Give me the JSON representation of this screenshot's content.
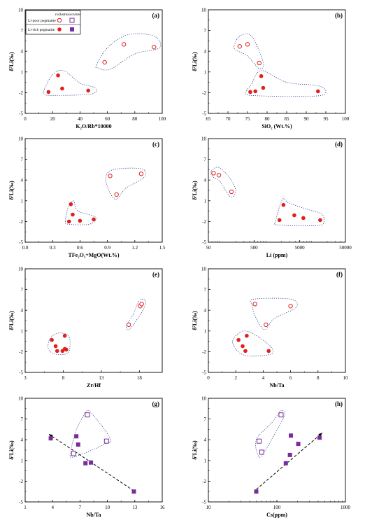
{
  "legend": {
    "col_rocks": "rocks",
    "col_muscovites": "muscovites",
    "row_poor": "Li-poor pegmatite",
    "row_rich": "Li-rich pegmatite"
  },
  "colors": {
    "rock_red": "#e0201b",
    "muscovite_purple": "#7b2c9c",
    "envelope": "#2b3a8c"
  },
  "chart_data": [
    {
      "id": "a",
      "panel_label": "(a)",
      "type": "scatter",
      "xlabel": "K₂O/Rb*10000",
      "ylabel": "δ⁷Li(‰)",
      "xscale": "linear",
      "xlim": [
        0,
        100
      ],
      "xticks": [
        0,
        20,
        40,
        60,
        80,
        100
      ],
      "xtick_labels": [
        "0",
        "20",
        "40",
        "60",
        "80",
        "100"
      ],
      "ylim": [
        -5,
        10
      ],
      "yticks": [
        -5,
        -2,
        1,
        4,
        7,
        10
      ],
      "series": [
        {
          "name": "Li-poor pegmatite",
          "marker": "open-circle",
          "x": [
            58,
            72,
            94
          ],
          "y": [
            2.4,
            5.0,
            4.6
          ]
        },
        {
          "name": "Li-rich pegmatite",
          "marker": "filled-circle",
          "x": [
            17,
            24,
            27,
            46
          ],
          "y": [
            -1.9,
            0.5,
            -1.4,
            -1.7
          ]
        }
      ],
      "envelopes": [
        [
          [
            52,
            2.0
          ],
          [
            60,
            4.5
          ],
          [
            75,
            6.4
          ],
          [
            94,
            6.2
          ],
          [
            98,
            4.5
          ],
          [
            80,
            3.6
          ],
          [
            62,
            1.4
          ],
          [
            53,
            1.6
          ]
        ],
        [
          [
            14,
            -1.5
          ],
          [
            20,
            0.6
          ],
          [
            28,
            1.2
          ],
          [
            40,
            -0.6
          ],
          [
            51,
            -1.3
          ],
          [
            48,
            -2.2
          ],
          [
            20,
            -2.4
          ],
          [
            14,
            -2.2
          ]
        ]
      ]
    },
    {
      "id": "b",
      "panel_label": "(b)",
      "type": "scatter",
      "xlabel": "SiO₂ (Wt.%)",
      "ylabel": "δ⁷Li(‰)",
      "xscale": "linear",
      "xlim": [
        65,
        100
      ],
      "xticks": [
        65,
        70,
        75,
        80,
        85,
        90,
        95,
        100
      ],
      "xtick_labels": [
        "65",
        "70",
        "75",
        "80",
        "85",
        "90",
        "95",
        "100"
      ],
      "ylim": [
        -5,
        10
      ],
      "yticks": [
        -5,
        -2,
        1,
        4,
        7,
        10
      ],
      "series": [
        {
          "name": "Li-poor pegmatite",
          "marker": "open-circle",
          "x": [
            73,
            75,
            78
          ],
          "y": [
            4.7,
            5.0,
            2.3
          ]
        },
        {
          "name": "Li-rich pegmatite",
          "marker": "filled-circle",
          "x": [
            75.7,
            77,
            78.5,
            79,
            93
          ],
          "y": [
            -1.9,
            -1.8,
            0.4,
            -1.3,
            -1.8
          ]
        }
      ],
      "envelopes": [
        [
          [
            71.6,
            4.8
          ],
          [
            73,
            6.2
          ],
          [
            76,
            6.2
          ],
          [
            79,
            2.4
          ],
          [
            78,
            1.5
          ],
          [
            75,
            3.3
          ],
          [
            72,
            4.2
          ]
        ],
        [
          [
            74.8,
            -1.7
          ],
          [
            76,
            -0.8
          ],
          [
            78.5,
            1.2
          ],
          [
            85,
            -0.5
          ],
          [
            93,
            -1.0
          ],
          [
            95,
            -1.9
          ],
          [
            92,
            -2.5
          ],
          [
            76,
            -2.4
          ]
        ]
      ]
    },
    {
      "id": "c",
      "panel_label": "(c)",
      "type": "scatter",
      "xlabel": "TFe₂O₃+MgO(Wt.%)",
      "ylabel": "δ⁷Li(‰)",
      "xscale": "linear",
      "xlim": [
        0,
        1.5
      ],
      "xticks": [
        0,
        0.3,
        0.6,
        0.9,
        1.2,
        1.5
      ],
      "xtick_labels": [
        "0.0",
        "0.3",
        "0.6",
        "0.9",
        "1.2",
        "1.5"
      ],
      "ylim": [
        -5,
        10
      ],
      "yticks": [
        -5,
        -2,
        1,
        4,
        7,
        10
      ],
      "series": [
        {
          "name": "Li-poor pegmatite",
          "marker": "open-circle",
          "x": [
            0.93,
            1.0,
            1.27
          ],
          "y": [
            4.6,
            1.9,
            4.9
          ]
        },
        {
          "name": "Li-rich pegmatite",
          "marker": "filled-circle",
          "x": [
            0.48,
            0.5,
            0.52,
            0.6,
            0.75
          ],
          "y": [
            -2.0,
            0.5,
            -1.0,
            -1.9,
            -1.7
          ]
        }
      ],
      "envelopes": [
        [
          [
            0.89,
            4.8
          ],
          [
            1.0,
            5.6
          ],
          [
            1.28,
            5.6
          ],
          [
            1.3,
            4.4
          ],
          [
            1.1,
            2.8
          ],
          [
            0.99,
            1.2
          ],
          [
            0.9,
            3.0
          ]
        ],
        [
          [
            0.44,
            -2.0
          ],
          [
            0.47,
            0.0
          ],
          [
            0.53,
            1.0
          ],
          [
            0.57,
            -0.4
          ],
          [
            0.72,
            -1.1
          ],
          [
            0.78,
            -1.6
          ],
          [
            0.7,
            -2.4
          ],
          [
            0.48,
            -2.4
          ]
        ]
      ]
    },
    {
      "id": "d",
      "panel_label": "(d)",
      "type": "scatter",
      "xlabel": "Li (ppm)",
      "ylabel": "δ⁷Li(‰)",
      "xscale": "log",
      "xlim": [
        50,
        50000
      ],
      "xticks": [
        50,
        500,
        5000,
        50000
      ],
      "xtick_labels": [
        "50",
        "500",
        "5000",
        "50000"
      ],
      "ylim": [
        -5,
        10
      ],
      "yticks": [
        -5,
        -2,
        1,
        4,
        7,
        10
      ],
      "series": [
        {
          "name": "Li-poor pegmatite",
          "marker": "open-circle",
          "x": [
            65,
            85,
            160
          ],
          "y": [
            5.0,
            4.7,
            2.3
          ]
        },
        {
          "name": "Li-rich pegmatite",
          "marker": "filled-circle",
          "x": [
            1800,
            2200,
            3800,
            6000,
            14000
          ],
          "y": [
            -1.8,
            0.4,
            -1.1,
            -1.5,
            -1.8
          ]
        }
      ],
      "envelopes": [
        [
          [
            58,
            5.3
          ],
          [
            85,
            5.8
          ],
          [
            150,
            4.2
          ],
          [
            200,
            2.4
          ],
          [
            150,
            1.6
          ],
          [
            90,
            3.8
          ],
          [
            62,
            4.5
          ]
        ],
        [
          [
            1500,
            -1.9
          ],
          [
            2100,
            1.2
          ],
          [
            3000,
            0.6
          ],
          [
            8000,
            -0.3
          ],
          [
            15000,
            -0.9
          ],
          [
            17000,
            -2.0
          ],
          [
            12000,
            -2.6
          ],
          [
            1700,
            -2.5
          ]
        ]
      ]
    },
    {
      "id": "e",
      "panel_label": "(e)",
      "type": "scatter",
      "xlabel": "Zr/Hf",
      "ylabel": "δ⁷Li(‰)",
      "xscale": "linear",
      "xlim": [
        3,
        21
      ],
      "xticks": [
        3,
        8,
        13,
        18
      ],
      "xtick_labels": [
        "3",
        "8",
        "13",
        "18"
      ],
      "ylim": [
        -5,
        10
      ],
      "yticks": [
        -5,
        -2,
        1,
        4,
        7,
        10
      ],
      "series": [
        {
          "name": "Li-poor pegmatite",
          "marker": "open-circle",
          "x": [
            16.6,
            18.1,
            18.3
          ],
          "y": [
            1.9,
            4.6,
            4.9
          ]
        },
        {
          "name": "Li-rich pegmatite",
          "marker": "filled-circle",
          "x": [
            6.5,
            7.0,
            7.2,
            7.9,
            8.2,
            8.2,
            8.4
          ],
          "y": [
            -0.3,
            -1.2,
            -1.9,
            -1.9,
            0.3,
            -1.6,
            -1.7
          ]
        }
      ],
      "envelopes": [
        [
          [
            16.3,
            1.7
          ],
          [
            17.2,
            3.4
          ],
          [
            18.0,
            5.4
          ],
          [
            18.8,
            5.4
          ],
          [
            18.5,
            4.1
          ],
          [
            17.2,
            1.9
          ],
          [
            16.6,
            1.2
          ]
        ],
        [
          [
            6.0,
            -1.0
          ],
          [
            6.4,
            0.1
          ],
          [
            7.4,
            0.7
          ],
          [
            8.6,
            0.4
          ],
          [
            8.9,
            -0.8
          ],
          [
            8.6,
            -2.2
          ],
          [
            7.2,
            -2.4
          ],
          [
            6.2,
            -1.9
          ]
        ]
      ]
    },
    {
      "id": "f",
      "panel_label": "(f)",
      "type": "scatter",
      "xlabel": "Nb/Ta",
      "ylabel": "δ⁷Li(‰)",
      "xscale": "linear",
      "xlim": [
        0,
        10
      ],
      "xticks": [
        0,
        2,
        4,
        6,
        8,
        10
      ],
      "xtick_labels": [
        "0",
        "2",
        "4",
        "6",
        "8",
        "10"
      ],
      "ylim": [
        -5,
        10
      ],
      "yticks": [
        -5,
        -2,
        1,
        4,
        7,
        10
      ],
      "series": [
        {
          "name": "Li-poor pegmatite",
          "marker": "open-circle",
          "x": [
            3.4,
            4.2,
            6.0
          ],
          "y": [
            4.9,
            1.9,
            4.6
          ]
        },
        {
          "name": "Li-rich pegmatite",
          "marker": "filled-circle",
          "x": [
            2.2,
            2.5,
            2.7,
            2.8,
            4.4
          ],
          "y": [
            -0.3,
            -1.2,
            -1.9,
            0.3,
            -1.9
          ]
        }
      ],
      "envelopes": [
        [
          [
            3.2,
            4.7
          ],
          [
            3.3,
            5.6
          ],
          [
            6.0,
            5.6
          ],
          [
            6.4,
            4.4
          ],
          [
            4.8,
            2.8
          ],
          [
            4.1,
            1.2
          ],
          [
            3.4,
            3.2
          ]
        ],
        [
          [
            1.8,
            -0.2
          ],
          [
            2.6,
            1.0
          ],
          [
            3.6,
            0.2
          ],
          [
            4.6,
            -1.4
          ],
          [
            4.5,
            -2.4
          ],
          [
            2.8,
            -2.6
          ],
          [
            2.0,
            -1.6
          ]
        ]
      ]
    },
    {
      "id": "g",
      "panel_label": "(g)",
      "type": "scatter",
      "xlabel": "Nb/Ta",
      "ylabel": "δ⁷Li(‰)",
      "xscale": "linear",
      "xlim": [
        1,
        16
      ],
      "xticks": [
        1,
        4,
        7,
        10,
        13,
        16
      ],
      "xtick_labels": [
        "1",
        "4",
        "7",
        "10",
        "13",
        "16"
      ],
      "ylim": [
        -5,
        10
      ],
      "yticks": [
        -5,
        -2,
        1,
        4,
        7,
        10
      ],
      "series": [
        {
          "name": "Li-poor pegmatite",
          "marker": "open-square",
          "x": [
            6.3,
            7.8,
            9.9
          ],
          "y": [
            2.0,
            7.6,
            3.8
          ]
        },
        {
          "name": "Li-rich pegmatite",
          "marker": "filled-square",
          "x": [
            3.8,
            6.6,
            6.8,
            7.6,
            8.2,
            12.9
          ],
          "y": [
            4.2,
            4.5,
            3.3,
            0.6,
            0.7,
            -3.5
          ]
        }
      ],
      "envelopes": [
        [
          [
            6.0,
            2.3
          ],
          [
            6.6,
            5.4
          ],
          [
            7.6,
            7.9
          ],
          [
            8.2,
            7.9
          ],
          [
            10.3,
            4.2
          ],
          [
            9.6,
            3.3
          ],
          [
            6.3,
            1.5
          ]
        ]
      ],
      "trend_arrow": {
        "from": [
          12.9,
          -3.4
        ],
        "to": [
          3.6,
          4.8
        ]
      }
    },
    {
      "id": "h",
      "panel_label": "(h)",
      "type": "scatter",
      "xlabel": "Cs(ppm)",
      "ylabel": "δ⁷Li(‰)",
      "xscale": "log",
      "xlim": [
        10,
        1000
      ],
      "xticks": [
        10,
        100,
        1000
      ],
      "xtick_labels": [
        "10",
        "100",
        "1000"
      ],
      "ylim": [
        -5,
        10
      ],
      "yticks": [
        -5,
        -2,
        1,
        4,
        7,
        10
      ],
      "series": [
        {
          "name": "Li-poor pegmatite",
          "marker": "open-square",
          "x": [
            55,
            60,
            115
          ],
          "y": [
            3.8,
            2.2,
            7.6
          ]
        },
        {
          "name": "Li-rich pegmatite",
          "marker": "filled-square",
          "x": [
            50,
            135,
            155,
            160,
            205,
            420
          ],
          "y": [
            -3.5,
            0.6,
            1.8,
            4.6,
            3.4,
            4.3
          ]
        }
      ],
      "envelopes": [
        [
          [
            50,
            4.0
          ],
          [
            85,
            6.5
          ],
          [
            115,
            8.2
          ],
          [
            130,
            7.6
          ],
          [
            100,
            5.4
          ],
          [
            70,
            2.7
          ],
          [
            55,
            1.5
          ]
        ]
      ],
      "trend_arrow": {
        "from": [
          50,
          -3.2
        ],
        "to": [
          460,
          5.0
        ]
      }
    }
  ]
}
